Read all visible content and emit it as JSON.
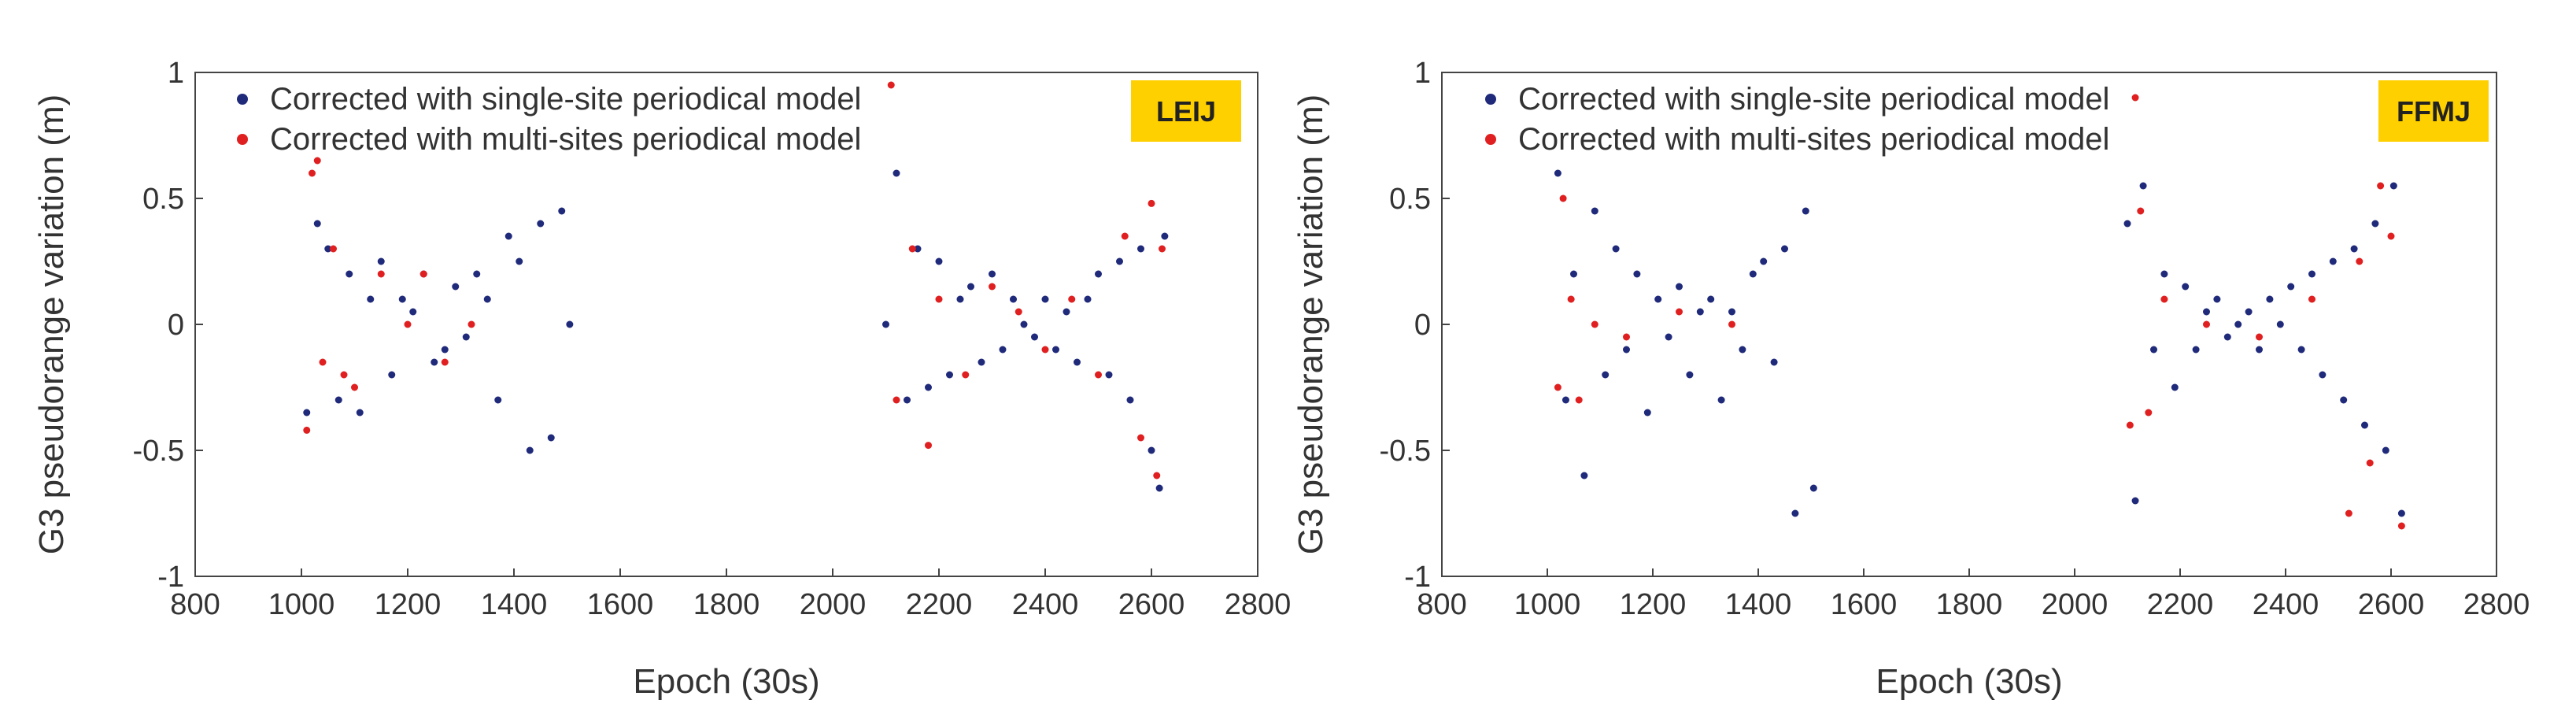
{
  "colors": {
    "series_single": "#1f2a7a",
    "series_multi": "#e02020",
    "site_tag_bg": "#ffd000"
  },
  "chart_data": [
    {
      "type": "scatter",
      "site": "LEIJ",
      "xlabel": "Epoch (30s)",
      "ylabel": "G3 pseudorange variation (m)",
      "xlim": [
        800,
        2800
      ],
      "ylim": [
        -1,
        1
      ],
      "xticks": [
        "800",
        "1000",
        "1200",
        "1400",
        "1600",
        "1800",
        "2000",
        "2200",
        "2400",
        "2600",
        "2800"
      ],
      "yticks": [
        "1",
        "0.5",
        "0",
        "-0.5",
        "-1"
      ],
      "legend": [
        "Corrected with single-site periodical model",
        "Corrected with multi-sites periodical model"
      ],
      "series": [
        {
          "name": "Corrected with single-site periodical model",
          "color": "#1f2a7a",
          "x": [
            1010,
            1030,
            1050,
            1070,
            1090,
            1110,
            1130,
            1150,
            1170,
            1190,
            1210,
            1230,
            1250,
            1270,
            1290,
            1310,
            1330,
            1350,
            1370,
            1390,
            1410,
            1430,
            1450,
            1470,
            1490,
            1505,
            2100,
            2120,
            2140,
            2160,
            2180,
            2200,
            2220,
            2240,
            2260,
            2280,
            2300,
            2320,
            2340,
            2360,
            2380,
            2400,
            2420,
            2440,
            2460,
            2480,
            2500,
            2520,
            2540,
            2560,
            2580,
            2600,
            2615,
            2625
          ],
          "y": [
            -0.35,
            0.4,
            0.3,
            -0.3,
            0.2,
            -0.35,
            0.1,
            0.25,
            -0.2,
            0.1,
            0.05,
            0.2,
            -0.15,
            -0.1,
            0.15,
            -0.05,
            0.2,
            0.1,
            -0.3,
            0.35,
            0.25,
            -0.5,
            0.4,
            -0.45,
            0.45,
            0.0,
            0.0,
            0.6,
            -0.3,
            0.3,
            -0.25,
            0.25,
            -0.2,
            0.1,
            0.15,
            -0.15,
            0.2,
            -0.1,
            0.1,
            0.0,
            -0.05,
            0.1,
            -0.1,
            0.05,
            -0.15,
            0.1,
            0.2,
            -0.2,
            0.25,
            -0.3,
            0.3,
            -0.5,
            -0.65,
            0.35
          ]
        },
        {
          "name": "Corrected with multi-sites periodical model",
          "color": "#e02020",
          "x": [
            1010,
            1020,
            1030,
            1040,
            1060,
            1080,
            1100,
            1150,
            1200,
            1230,
            1270,
            1320,
            2110,
            2120,
            2150,
            2180,
            2200,
            2250,
            2300,
            2350,
            2400,
            2450,
            2500,
            2550,
            2580,
            2600,
            2610,
            2620
          ],
          "y": [
            -0.42,
            0.6,
            0.65,
            -0.15,
            0.3,
            -0.2,
            -0.25,
            0.2,
            0.0,
            0.2,
            -0.15,
            0.0,
            0.95,
            -0.3,
            0.3,
            -0.48,
            0.1,
            -0.2,
            0.15,
            0.05,
            -0.1,
            0.1,
            -0.2,
            0.35,
            -0.45,
            0.48,
            -0.6,
            0.3
          ]
        }
      ]
    },
    {
      "type": "scatter",
      "site": "FFMJ",
      "xlabel": "Epoch (30s)",
      "ylabel": "G3 pseudorange variation (m)",
      "xlim": [
        800,
        2800
      ],
      "ylim": [
        -1,
        1
      ],
      "xticks": [
        "800",
        "1000",
        "1200",
        "1400",
        "1600",
        "1800",
        "2000",
        "2200",
        "2400",
        "2600",
        "2800"
      ],
      "yticks": [
        "1",
        "0.5",
        "0",
        "-0.5",
        "-1"
      ],
      "legend": [
        "Corrected with single-site periodical model",
        "Corrected with multi-sites periodical model"
      ],
      "series": [
        {
          "name": "Corrected with single-site periodical model",
          "color": "#1f2a7a",
          "x": [
            1020,
            1035,
            1050,
            1070,
            1090,
            1110,
            1130,
            1150,
            1170,
            1190,
            1210,
            1230,
            1250,
            1270,
            1290,
            1310,
            1330,
            1350,
            1370,
            1390,
            1410,
            1430,
            1450,
            1470,
            1490,
            1505,
            2100,
            2115,
            2130,
            2150,
            2170,
            2190,
            2210,
            2230,
            2250,
            2270,
            2290,
            2310,
            2330,
            2350,
            2370,
            2390,
            2410,
            2430,
            2450,
            2470,
            2490,
            2510,
            2530,
            2550,
            2570,
            2590,
            2605,
            2620
          ],
          "y": [
            0.6,
            -0.3,
            0.2,
            -0.6,
            0.45,
            -0.2,
            0.3,
            -0.1,
            0.2,
            -0.35,
            0.1,
            -0.05,
            0.15,
            -0.2,
            0.05,
            0.1,
            -0.3,
            0.05,
            -0.1,
            0.2,
            0.25,
            -0.15,
            0.3,
            -0.75,
            0.45,
            -0.65,
            0.4,
            -0.7,
            0.55,
            -0.1,
            0.2,
            -0.25,
            0.15,
            -0.1,
            0.05,
            0.1,
            -0.05,
            0.0,
            0.05,
            -0.1,
            0.1,
            0.0,
            0.15,
            -0.1,
            0.2,
            -0.2,
            0.25,
            -0.3,
            0.3,
            -0.4,
            0.4,
            -0.5,
            0.55,
            -0.75
          ]
        },
        {
          "name": "Corrected with multi-sites periodical model",
          "color": "#e02020",
          "x": [
            1020,
            1030,
            1045,
            1060,
            1090,
            1150,
            1250,
            1350,
            2105,
            2115,
            2125,
            2140,
            2170,
            2250,
            2350,
            2450,
            2520,
            2540,
            2560,
            2580,
            2600,
            2620
          ],
          "y": [
            -0.25,
            0.5,
            0.1,
            -0.3,
            0.0,
            -0.05,
            0.05,
            0.0,
            -0.4,
            0.9,
            0.45,
            -0.35,
            0.1,
            0.0,
            -0.05,
            0.1,
            -0.75,
            0.25,
            -0.55,
            0.55,
            0.35,
            -0.8
          ]
        }
      ]
    }
  ]
}
